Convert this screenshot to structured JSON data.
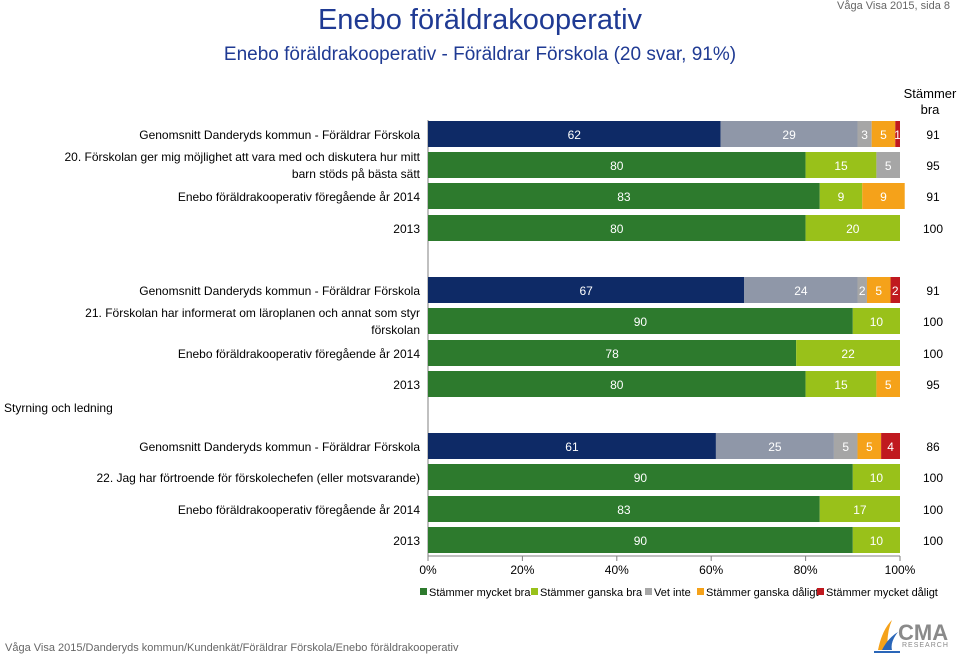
{
  "header": {
    "title": "Enebo föräldrakooperativ",
    "subtitle": "Enebo föräldrakooperativ - Föräldrar Förskola (20 svar, 91%)",
    "page_info": "Våga Visa 2015, sida 8"
  },
  "right_column_header": "Stämmer bra",
  "section_label": "Styrning och ledning",
  "footer": "Våga Visa 2015/Danderyds kommun/Kundenkät/Föräldrar Förskola/Enebo föräldrakooperativ",
  "logo": {
    "text": "CMA",
    "sub": "RESEARCH"
  },
  "colors": {
    "Stämmer mycket bra": "#2d7a2d",
    "Stämmer ganska bra": "#99c11a",
    "Vet inte": "#a6a6a6",
    "Stämmer ganska dåligt": "#f5a21a",
    "Stämmer mycket dåligt": "#c0191f",
    "benchmark_1": "#0e2a66",
    "benchmark_2": "#8f97a8"
  },
  "chart_data": {
    "type": "bar",
    "orientation": "horizontal",
    "stacked": true,
    "xlim": [
      0,
      100
    ],
    "xticks": [
      "0%",
      "20%",
      "40%",
      "60%",
      "80%",
      "100%"
    ],
    "legend_position": "bottom",
    "legend": [
      "Stämmer mycket bra",
      "Stämmer ganska bra",
      "Vet inte",
      "Stämmer ganska dåligt",
      "Stämmer mycket dåligt"
    ],
    "questions": [
      {
        "text": "20. Förskolan ger mig möjlighet att vara med och diskutera hur mitt barn stöds på bästa sätt",
        "rows": [
          {
            "label": "Genomsnitt Danderyds kommun - Föräldrar Förskola",
            "benchmark": true,
            "values": [
              62,
              29,
              3,
              5,
              1
            ],
            "labels": [
              "62",
              "29",
              "3",
              "5",
              "1"
            ],
            "stammer_bra": "91"
          },
          {
            "label": "",
            "benchmark": false,
            "values": [
              80,
              15,
              5,
              0,
              0
            ],
            "labels": [
              "80",
              "15",
              "5",
              "0",
              ""
            ],
            "stammer_bra": "95"
          },
          {
            "label": "Enebo föräldrakooperativ föregående år 2014",
            "benchmark": false,
            "values": [
              83,
              9,
              0,
              9,
              0
            ],
            "labels": [
              "83",
              "9",
              "0",
              "9",
              "0"
            ],
            "stammer_bra": "91"
          },
          {
            "label": "2013",
            "benchmark": false,
            "values": [
              80,
              20,
              0,
              0,
              0
            ],
            "labels": [
              "80",
              "20",
              "0",
              "",
              ""
            ],
            "stammer_bra": "100"
          }
        ]
      },
      {
        "text": "21. Förskolan har informerat om läroplanen och annat som styr förskolan",
        "rows": [
          {
            "label": "Genomsnitt Danderyds kommun - Föräldrar Förskola",
            "benchmark": true,
            "values": [
              67,
              24,
              2,
              5,
              2
            ],
            "labels": [
              "67",
              "24",
              "2",
              "5",
              "2"
            ],
            "stammer_bra": "91"
          },
          {
            "label": "",
            "benchmark": false,
            "values": [
              90,
              10,
              0,
              0,
              0
            ],
            "labels": [
              "90",
              "10",
              "0",
              "",
              ""
            ],
            "stammer_bra": "100"
          },
          {
            "label": "Enebo föräldrakooperativ föregående år 2014",
            "benchmark": false,
            "values": [
              78,
              22,
              0,
              0,
              0
            ],
            "labels": [
              "78",
              "22",
              "0",
              "",
              ""
            ],
            "stammer_bra": "100"
          },
          {
            "label": "2013",
            "benchmark": false,
            "values": [
              80,
              15,
              0,
              5,
              0
            ],
            "labels": [
              "80",
              "15",
              "0",
              "5",
              "0"
            ],
            "stammer_bra": "95"
          }
        ]
      },
      {
        "text": "22. Jag har förtroende för förskolechefen (eller motsvarande)",
        "rows": [
          {
            "label": "Genomsnitt Danderyds kommun - Föräldrar Förskola",
            "benchmark": true,
            "values": [
              61,
              25,
              5,
              5,
              4
            ],
            "labels": [
              "61",
              "25",
              "5",
              "5",
              "4"
            ],
            "stammer_bra": "86"
          },
          {
            "label": "",
            "benchmark": false,
            "values": [
              90,
              10,
              0,
              0,
              0
            ],
            "labels": [
              "90",
              "10",
              "0",
              "",
              ""
            ],
            "stammer_bra": "100"
          },
          {
            "label": "Enebo föräldrakooperativ föregående år 2014",
            "benchmark": false,
            "values": [
              83,
              17,
              0,
              0,
              0
            ],
            "labels": [
              "83",
              "17",
              "0",
              "",
              ""
            ],
            "stammer_bra": "100"
          },
          {
            "label": "2013",
            "benchmark": false,
            "values": [
              90,
              10,
              0,
              0,
              0
            ],
            "labels": [
              "90",
              "10",
              "0",
              "",
              ""
            ],
            "stammer_bra": "100"
          }
        ]
      }
    ]
  }
}
